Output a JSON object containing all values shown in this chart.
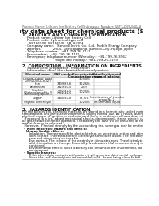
{
  "bg_color": "#ffffff",
  "header_left": "Product Name: Lithium Ion Battery Cell",
  "header_right": "Substance Number: SRF3-049-00018\nEstablished / Revision: Dec.7 2016",
  "title": "Safety data sheet for chemical products (SDS)",
  "section1_title": "1. PRODUCT AND COMPANY IDENTIFICATION",
  "section1_lines": [
    "  • Product name: Lithium Ion Battery Cell",
    "  • Product code: Cylindrical-type cell",
    "       SR18650U, SR18650L, SR18650A",
    "  • Company name:   Sanyo Electric Co., Ltd., Mobile Energy Company",
    "  • Address:            2001, Kamitondacho, Sumoto-City, Hyogo, Japan",
    "  • Telephone number:   +81-799-26-4111",
    "  • Fax number:   +81-799-26-4129",
    "  • Emergency telephone number (Weekday): +81-799-26-3962",
    "                                 (Night and holiday): +81-799-26-4129"
  ],
  "section2_title": "2. COMPOSITION / INFORMATION ON INGREDIENTS",
  "section2_intro": "  • Substance or preparation: Preparation",
  "section2_sub": "  • Information about the chemical nature of product:",
  "table_col_headers": [
    "Chemical name",
    "CAS number",
    "Concentration /\nConcentration range",
    "Classification and\nhazard labeling"
  ],
  "table_rows": [
    [
      "Lithium cobalt oxide\n(LiMn2O4(LiCoO2))",
      "-",
      "30-50%",
      "-"
    ],
    [
      "Iron",
      "7439-89-6",
      "16-26%",
      "-"
    ],
    [
      "Aluminium",
      "7429-90-5",
      "2-5%",
      "-"
    ],
    [
      "Graphite\n(Flake or graphite-l)\n(Artificial graphite-l)",
      "7782-42-5\n7782-42-5",
      "10-25%",
      "-"
    ],
    [
      "Copper",
      "7440-50-8",
      "8-15%",
      "Sensitization of the skin\ngroup No.2"
    ],
    [
      "Organic electrolyte",
      "-",
      "10-20%",
      "Inflammable liquid"
    ]
  ],
  "section3_title": "3. HAZARDS IDENTIFICATION",
  "section3_para1": "For the battery cell, chemical materials are stored in a hermetically sealed metal case, designed to withstand",
  "section3_para2": "temperatures and pressure-environments during normal use. As a result, during normal use, there is no",
  "section3_para3": "physical danger of ignition or explosion and there is no danger of hazardous materials leakage.",
  "section3_para4": "  If exposed to a fire, added mechanical shocks, decomposed, strong electric current and other misuse can",
  "section3_para5": "be gas release cannot be operated. The battery cell case will be breached at the extremes. Hazardous",
  "section3_para6": "materials may be released.",
  "section3_para7": "  Moreover, if heated strongly by the surrounding fire, some gas may be emitted.",
  "section3_b1": "Most important hazard and effects:",
  "section3_b2": "Human health effects:",
  "section3_b3a": "   Inhalation: The release of the electrolyte has an anesthesia action and stimulates in respiratory tract.",
  "section3_b3b": "   Skin contact: The release of the electrolyte stimulates a skin. The electrolyte skin contact causes a",
  "section3_b3c": "   sore and stimulation on the skin.",
  "section3_b3d": "   Eye contact: The release of the electrolyte stimulates eyes. The electrolyte eye contact causes a sore",
  "section3_b3e": "   and stimulation on the eye. Especially, a substance that causes a strong inflammation of the eye is",
  "section3_b3f": "   contained.",
  "section3_b3g": "   Environmental effects: Since a battery cell remains in the environment, do not throw out it into the",
  "section3_b3h": "   environment.",
  "section3_b4": "Specific hazards:",
  "section3_b5": "   If the electrolyte contacts with water, it will generate detrimental hydrogen fluoride.",
  "section3_b6": "   Since the said electrolyte is inflammable liquid, do not bring close to fire.",
  "separator_color": "#999999",
  "text_color": "#111111",
  "light_text": "#666666",
  "title_fontsize": 5.0,
  "header_fontsize": 2.8,
  "section_fontsize": 3.8,
  "body_fontsize": 3.0,
  "table_fontsize": 2.8
}
